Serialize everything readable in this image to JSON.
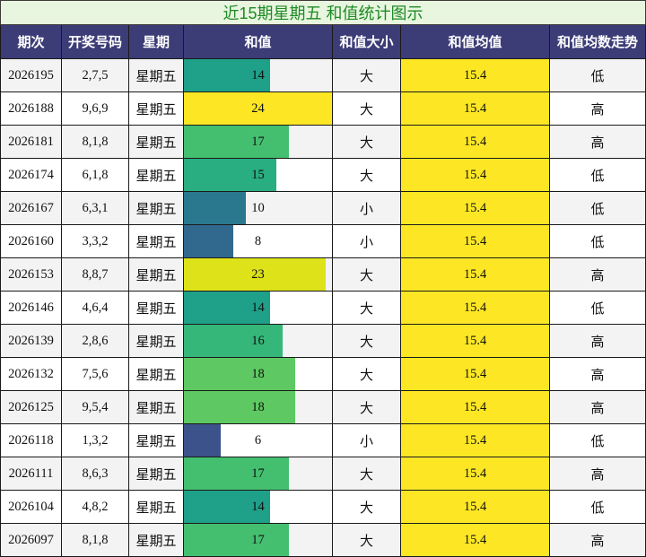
{
  "colors": {
    "header_bg": "#3c3c77",
    "header_text": "#ffffff",
    "title_bg": "#e8f5df",
    "title_text": "#1e8b24",
    "mean_bg": "#fde725",
    "row_alt_bg": "#f3f3f3"
  },
  "chart_data": {
    "type": "table",
    "title": "近15期星期五 和值统计图示",
    "columns": [
      "期次",
      "开奖号码",
      "星期",
      "和值",
      "和值大小",
      "和值均值",
      "和值均数走势"
    ],
    "rows": [
      {
        "period": "2026195",
        "numbers": "2,7,5",
        "weekday": "星期五",
        "sum": 14,
        "size": "大",
        "mean": 15.4,
        "trend": "低",
        "color": "#1fa088"
      },
      {
        "period": "2026188",
        "numbers": "9,6,9",
        "weekday": "星期五",
        "sum": 24,
        "size": "大",
        "mean": 15.4,
        "trend": "高",
        "color": "#fde725"
      },
      {
        "period": "2026181",
        "numbers": "8,1,8",
        "weekday": "星期五",
        "sum": 17,
        "size": "大",
        "mean": 15.4,
        "trend": "高",
        "color": "#44bf70"
      },
      {
        "period": "2026174",
        "numbers": "6,1,8",
        "weekday": "星期五",
        "sum": 15,
        "size": "大",
        "mean": 15.4,
        "trend": "低",
        "color": "#28ae80"
      },
      {
        "period": "2026167",
        "numbers": "6,3,1",
        "weekday": "星期五",
        "sum": 10,
        "size": "小",
        "mean": 15.4,
        "trend": "低",
        "color": "#2a788e"
      },
      {
        "period": "2026160",
        "numbers": "3,3,2",
        "weekday": "星期五",
        "sum": 8,
        "size": "小",
        "mean": 15.4,
        "trend": "低",
        "color": "#31688e"
      },
      {
        "period": "2026153",
        "numbers": "8,8,7",
        "weekday": "星期五",
        "sum": 23,
        "size": "大",
        "mean": 15.4,
        "trend": "高",
        "color": "#dde318"
      },
      {
        "period": "2026146",
        "numbers": "4,6,4",
        "weekday": "星期五",
        "sum": 14,
        "size": "大",
        "mean": 15.4,
        "trend": "低",
        "color": "#1fa088"
      },
      {
        "period": "2026139",
        "numbers": "2,8,6",
        "weekday": "星期五",
        "sum": 16,
        "size": "大",
        "mean": 15.4,
        "trend": "高",
        "color": "#35b779"
      },
      {
        "period": "2026132",
        "numbers": "7,5,6",
        "weekday": "星期五",
        "sum": 18,
        "size": "大",
        "mean": 15.4,
        "trend": "高",
        "color": "#5ec962"
      },
      {
        "period": "2026125",
        "numbers": "9,5,4",
        "weekday": "星期五",
        "sum": 18,
        "size": "大",
        "mean": 15.4,
        "trend": "高",
        "color": "#5ec962"
      },
      {
        "period": "2026118",
        "numbers": "1,3,2",
        "weekday": "星期五",
        "sum": 6,
        "size": "小",
        "mean": 15.4,
        "trend": "低",
        "color": "#3b528b"
      },
      {
        "period": "2026111",
        "numbers": "8,6,3",
        "weekday": "星期五",
        "sum": 17,
        "size": "大",
        "mean": 15.4,
        "trend": "高",
        "color": "#44bf70"
      },
      {
        "period": "2026104",
        "numbers": "4,8,2",
        "weekday": "星期五",
        "sum": 14,
        "size": "大",
        "mean": 15.4,
        "trend": "低",
        "color": "#1fa088"
      },
      {
        "period": "2026097",
        "numbers": "8,1,8",
        "weekday": "星期五",
        "sum": 17,
        "size": "大",
        "mean": 15.4,
        "trend": "高",
        "color": "#44bf70"
      }
    ]
  }
}
